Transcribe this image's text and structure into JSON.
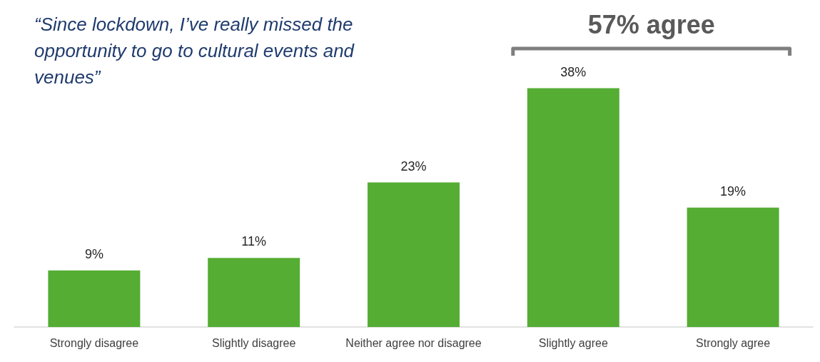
{
  "chart_data": {
    "type": "bar",
    "title": "“Since lockdown, I’ve really missed the opportunity to go to cultural events and venues”",
    "categories": [
      "Strongly disagree",
      "Slightly disagree",
      "Neither agree nor disagree",
      "Slightly agree",
      "Strongly agree"
    ],
    "values": [
      9,
      11,
      23,
      38,
      19
    ],
    "value_labels": [
      "9%",
      "11%",
      "23%",
      "38%",
      "19%"
    ],
    "color": "#55ad34",
    "annotations": [
      "57% agree"
    ]
  }
}
